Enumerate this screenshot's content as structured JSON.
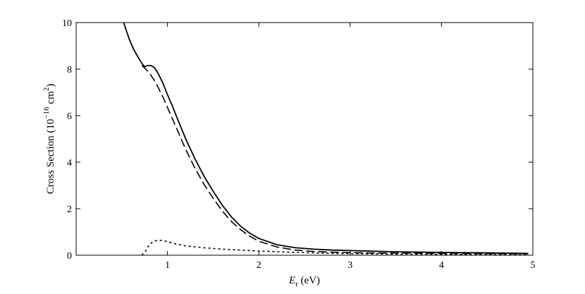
{
  "chart_data": {
    "type": "line",
    "title": "",
    "xlabel": {
      "main": "E",
      "subscript": "r",
      "suffix": " (eV)"
    },
    "ylabel": {
      "prefix": "Cross Section (10",
      "exponent": "−16",
      "middle": " cm",
      "exponent2": "2",
      "suffix": ")"
    },
    "xlim": [
      0,
      5
    ],
    "ylim": [
      0,
      10
    ],
    "x_ticks": [
      1,
      2,
      3,
      4,
      5
    ],
    "y_ticks": [
      0,
      2,
      4,
      6,
      8,
      10
    ],
    "grid": false,
    "legend": "none",
    "series": [
      {
        "style": "solid",
        "color": "#000000",
        "x": [
          0.52,
          0.58,
          0.63,
          0.68,
          0.72,
          0.75,
          0.78,
          0.82,
          0.86,
          0.9,
          0.95,
          1.0,
          1.05,
          1.1,
          1.2,
          1.3,
          1.4,
          1.5,
          1.6,
          1.7,
          1.8,
          1.9,
          2.0,
          2.2,
          2.4,
          2.6,
          2.8,
          3.0,
          3.5,
          4.0,
          4.5,
          4.95
        ],
        "y": [
          10.0,
          9.3,
          8.85,
          8.5,
          8.25,
          8.1,
          8.15,
          8.15,
          8.05,
          7.8,
          7.4,
          6.9,
          6.45,
          5.95,
          5.0,
          4.15,
          3.4,
          2.75,
          2.15,
          1.65,
          1.25,
          0.95,
          0.72,
          0.45,
          0.32,
          0.26,
          0.22,
          0.2,
          0.15,
          0.12,
          0.1,
          0.08
        ]
      },
      {
        "style": "dashed",
        "color": "#000000",
        "x": [
          0.72,
          0.75,
          0.8,
          0.85,
          0.9,
          0.95,
          1.0,
          1.05,
          1.1,
          1.2,
          1.3,
          1.4,
          1.5,
          1.6,
          1.7,
          1.8,
          1.9,
          2.0,
          2.2,
          2.4,
          2.6,
          2.8,
          3.0,
          3.2,
          3.5,
          4.0,
          4.5,
          4.95
        ],
        "y": [
          8.15,
          8.05,
          7.85,
          7.55,
          7.2,
          6.8,
          6.35,
          5.9,
          5.45,
          4.55,
          3.75,
          3.05,
          2.45,
          1.9,
          1.45,
          1.1,
          0.82,
          0.6,
          0.35,
          0.22,
          0.16,
          0.13,
          0.11,
          0.1,
          0.09,
          0.08,
          0.07,
          0.06
        ]
      },
      {
        "style": "dotted",
        "color": "#000000",
        "x": [
          0.72,
          0.76,
          0.8,
          0.85,
          0.9,
          0.95,
          1.0,
          1.1,
          1.2,
          1.4,
          1.6,
          1.8,
          2.0,
          2.2,
          2.4,
          2.6,
          2.8,
          3.0,
          3.2,
          3.5,
          4.0,
          4.5,
          4.95
        ],
        "y": [
          0.0,
          0.18,
          0.45,
          0.6,
          0.65,
          0.63,
          0.58,
          0.48,
          0.4,
          0.32,
          0.26,
          0.22,
          0.18,
          0.15,
          0.12,
          0.1,
          0.08,
          0.07,
          0.06,
          0.05,
          0.04,
          0.03,
          0.02
        ]
      }
    ]
  }
}
